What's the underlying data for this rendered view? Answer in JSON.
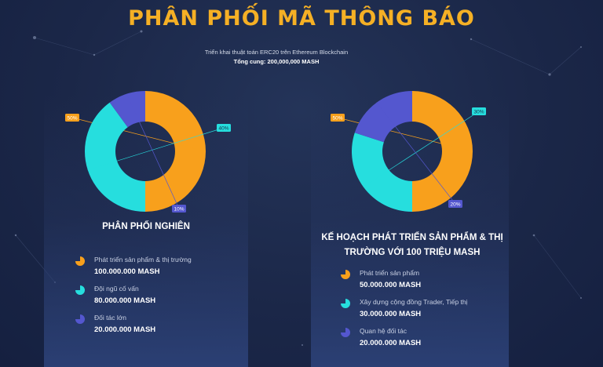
{
  "header": {
    "title": "PHÂN PHỐI MÃ THÔNG BÁO",
    "subtitle": "Triển khai thuật toán ERC20 trên Ethereum Blockchain",
    "total_supply": "Tổng cung: 200,000,000 MASH"
  },
  "colors": {
    "orange": "#f8a01c",
    "cyan": "#26dede",
    "indigo": "#5457cf",
    "title_gold": "#f5b025"
  },
  "chart_data": [
    {
      "type": "pie",
      "title": "PHÂN PHỐI NGHIÊN",
      "slices": [
        {
          "label": "Phát triển sản phẩm & thị trường",
          "value": 50,
          "value_label": "50%",
          "amount": "100.000.000 MASH",
          "color": "#f8a01c"
        },
        {
          "label": "Đội ngũ cố vấn",
          "value": 40,
          "value_label": "40%",
          "amount": "80.000.000 MASH",
          "color": "#26dede"
        },
        {
          "label": "Đối tác lớn",
          "value": 10,
          "value_label": "10%",
          "amount": "20.000.000 MASH",
          "color": "#5457cf"
        }
      ]
    },
    {
      "type": "pie",
      "title": "KẾ HOẠCH PHÁT TRIỂN SẢN PHẨM & THỊ TRƯỜNG VỚI 100 TRIỆU MASH",
      "slices": [
        {
          "label": "Phát triển sản phẩm",
          "value": 50,
          "value_label": "50%",
          "amount": "50.000.000 MASH",
          "color": "#f8a01c"
        },
        {
          "label": "Xây dựng cộng đồng Trader, Tiếp thị",
          "value": 30,
          "value_label": "30%",
          "amount": "30.000.000 MASH",
          "color": "#26dede"
        },
        {
          "label": "Quan hệ đối tác",
          "value": 20,
          "value_label": "20%",
          "amount": "20.000.000 MASH",
          "color": "#5457cf"
        }
      ]
    }
  ]
}
